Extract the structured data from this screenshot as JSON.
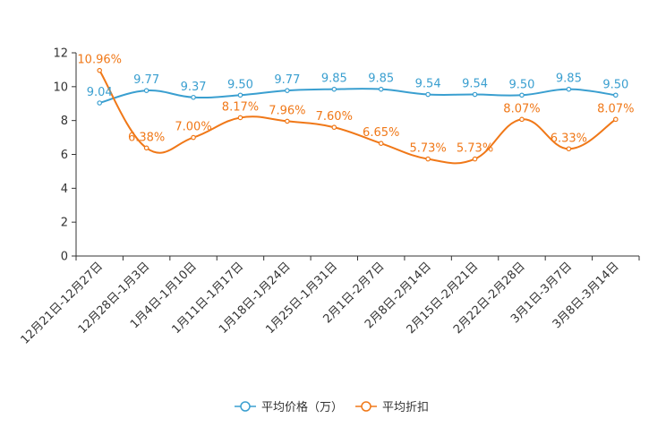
{
  "chart_data": {
    "type": "line",
    "title": "",
    "xlabel": "",
    "ylabel": "",
    "ylim": [
      0,
      12
    ],
    "yticks": [
      "0",
      "2",
      "4",
      "6",
      "8",
      "10",
      "12"
    ],
    "categories": [
      "12月21日-12月27日",
      "12月28日-1月3日",
      "1月4日-1月10日",
      "1月11日-1月17日",
      "1月18日-1月24日",
      "1月25日-1月31日",
      "2月1日-2月7日",
      "2月8日-2月14日",
      "2月15日-2月21日",
      "2月22日-2月28日",
      "3月1日-3月7日",
      "3月8日-3月14日"
    ],
    "series": [
      {
        "name": "平均价格（万）",
        "color": "#3a9fd0",
        "values": [
          9.04,
          9.77,
          9.37,
          9.5,
          9.77,
          9.85,
          9.85,
          9.54,
          9.54,
          9.5,
          9.85,
          9.5
        ],
        "labels": [
          "9.04",
          "9.77",
          "9.37",
          "9.50",
          "9.77",
          "9.85",
          "9.85",
          "9.54",
          "9.54",
          "9.50",
          "9.85",
          "9.50"
        ]
      },
      {
        "name": "平均折扣",
        "color": "#f07818",
        "values": [
          10.96,
          6.38,
          7.0,
          8.17,
          7.96,
          7.6,
          6.65,
          5.73,
          5.73,
          8.07,
          6.33,
          8.07
        ],
        "labels": [
          "10.96%",
          "6.38%",
          "7.00%",
          "8.17%",
          "7.96%",
          "7.60%",
          "6.65%",
          "5.73%",
          "5.73%",
          "8.07%",
          "6.33%",
          "8.07%"
        ]
      }
    ],
    "legend_position": "bottom-center",
    "grid": false
  }
}
